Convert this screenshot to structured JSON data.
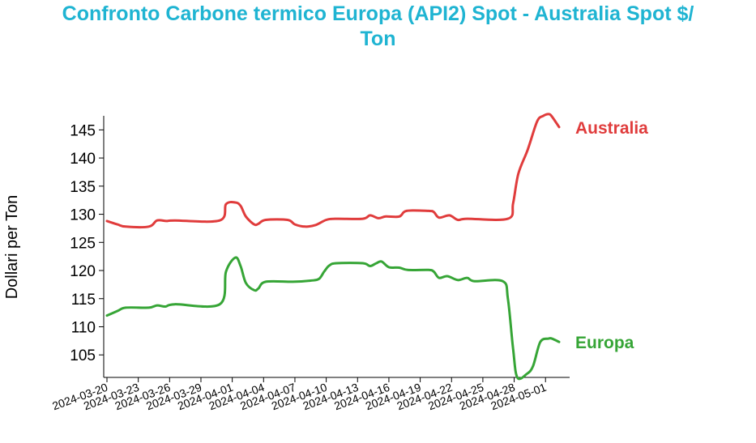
{
  "chart_data": {
    "type": "line",
    "title_lines": [
      "Confronto Carbone termico Europa (API2) Spot - Australia Spot $/",
      "Ton"
    ],
    "xlabel": "",
    "ylabel": "Dollari per Ton",
    "ylim": [
      101,
      147.5
    ],
    "xlim": [
      0,
      44
    ],
    "yticks": [
      105,
      110,
      115,
      120,
      125,
      130,
      135,
      140,
      145
    ],
    "xticks": [
      {
        "at": 0,
        "label": "2024-03-20"
      },
      {
        "at": 3,
        "label": "2024-03-23"
      },
      {
        "at": 6,
        "label": "2024-03-26"
      },
      {
        "at": 9,
        "label": "2024-03-29"
      },
      {
        "at": 12,
        "label": "2024-04-01"
      },
      {
        "at": 15,
        "label": "2024-04-04"
      },
      {
        "at": 18,
        "label": "2024-04-07"
      },
      {
        "at": 21,
        "label": "2024-04-10"
      },
      {
        "at": 24,
        "label": "2024-04-13"
      },
      {
        "at": 27,
        "label": "2024-04-16"
      },
      {
        "at": 30,
        "label": "2024-04-19"
      },
      {
        "at": 33,
        "label": "2024-04-22"
      },
      {
        "at": 36,
        "label": "2024-04-25"
      },
      {
        "at": 39,
        "label": "2024-04-28"
      },
      {
        "at": 42,
        "label": "2024-05-01"
      }
    ],
    "grid": false,
    "legend": "labels at end of each line",
    "series": [
      {
        "name": "Australia",
        "color": "#e03c3c",
        "points": [
          [
            0,
            128.8
          ],
          [
            1,
            128.2
          ],
          [
            1.8,
            127.8
          ],
          [
            4,
            127.8
          ],
          [
            4.8,
            128.9
          ],
          [
            5.7,
            128.8
          ],
          [
            6.5,
            128.9
          ],
          [
            10.8,
            128.9
          ],
          [
            11.4,
            131.8
          ],
          [
            12.3,
            132.1
          ],
          [
            12.8,
            131.5
          ],
          [
            13.3,
            129.6
          ],
          [
            14.1,
            128.2
          ],
          [
            14.5,
            128.3
          ],
          [
            15.2,
            129.0
          ],
          [
            17.3,
            129.0
          ],
          [
            18,
            128.2
          ],
          [
            19,
            127.8
          ],
          [
            20,
            128.1
          ],
          [
            21,
            129.0
          ],
          [
            22,
            129.2
          ],
          [
            24.5,
            129.2
          ],
          [
            25.2,
            129.8
          ],
          [
            26,
            129.3
          ],
          [
            26.7,
            129.6
          ],
          [
            28,
            129.6
          ],
          [
            28.7,
            130.6
          ],
          [
            30.8,
            130.6
          ],
          [
            31.3,
            130.4
          ],
          [
            31.8,
            129.4
          ],
          [
            32.8,
            129.8
          ],
          [
            33.6,
            129.0
          ],
          [
            34.5,
            129.2
          ],
          [
            38.4,
            129.2
          ],
          [
            38.9,
            132.0
          ],
          [
            39.4,
            137.2
          ],
          [
            40.3,
            141.5
          ],
          [
            41.2,
            146.5
          ],
          [
            41.8,
            147.5
          ],
          [
            42.3,
            147.8
          ],
          [
            42.6,
            147.4
          ],
          [
            43.3,
            145.5
          ]
        ]
      },
      {
        "name": "Europa",
        "color": "#36a536",
        "points": [
          [
            0,
            112.0
          ],
          [
            1,
            112.8
          ],
          [
            1.8,
            113.4
          ],
          [
            4,
            113.4
          ],
          [
            4.8,
            113.8
          ],
          [
            5.6,
            113.6
          ],
          [
            6.5,
            114.0
          ],
          [
            10.8,
            114.0
          ],
          [
            11.4,
            119.8
          ],
          [
            12.3,
            122.3
          ],
          [
            12.8,
            120.8
          ],
          [
            13.3,
            117.8
          ],
          [
            14.1,
            116.5
          ],
          [
            14.5,
            116.8
          ],
          [
            15.2,
            118.0
          ],
          [
            17.8,
            118.0
          ],
          [
            19.5,
            118.2
          ],
          [
            20.3,
            118.5
          ],
          [
            20.8,
            119.8
          ],
          [
            21.3,
            120.9
          ],
          [
            22,
            121.3
          ],
          [
            24.5,
            121.3
          ],
          [
            25.2,
            120.8
          ],
          [
            25.8,
            121.3
          ],
          [
            26.3,
            121.6
          ],
          [
            27,
            120.6
          ],
          [
            28,
            120.5
          ],
          [
            28.8,
            120.1
          ],
          [
            30.8,
            120.1
          ],
          [
            31.3,
            119.8
          ],
          [
            31.8,
            118.7
          ],
          [
            32.6,
            119.0
          ],
          [
            33.6,
            118.3
          ],
          [
            34.5,
            118.7
          ],
          [
            35.2,
            118.1
          ],
          [
            37.9,
            118.1
          ],
          [
            38.4,
            115.0
          ],
          [
            38.9,
            106.0
          ],
          [
            39.3,
            101.0
          ],
          [
            40.2,
            101.6
          ],
          [
            40.8,
            103.0
          ],
          [
            41.5,
            107.3
          ],
          [
            42.3,
            107.9
          ],
          [
            42.6,
            107.9
          ],
          [
            43.3,
            107.3
          ]
        ]
      }
    ]
  }
}
